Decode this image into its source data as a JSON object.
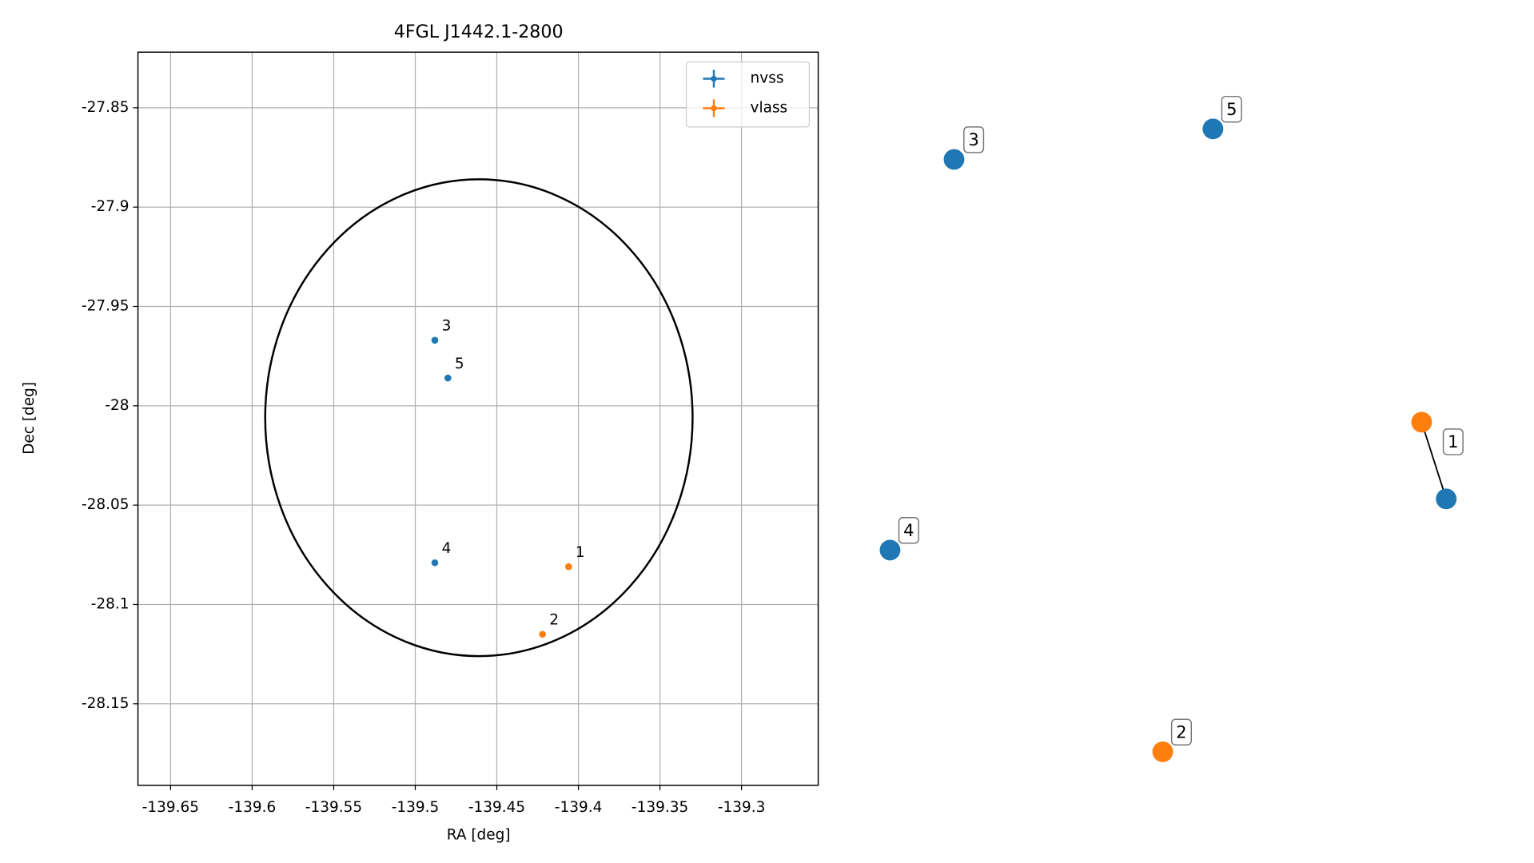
{
  "chart_data": {
    "type": "scatter",
    "title": "4FGL J1442.1-2800",
    "x_label": "RA [deg]",
    "y_label": "Dec [deg]",
    "xlim": [
      -139.67,
      -139.253
    ],
    "ylim": [
      -28.191,
      -27.822
    ],
    "xticks": [
      -139.65,
      -139.6,
      -139.55,
      -139.5,
      -139.45,
      -139.4,
      -139.35,
      -139.3
    ],
    "yticks": [
      -27.85,
      -27.9,
      -27.95,
      -28.0,
      -28.05,
      -28.1,
      -28.15
    ],
    "grid": true,
    "legend": "upper right",
    "series": [
      {
        "name": "nvss",
        "color": "#1f77b4",
        "x": [
          -139.488,
          -139.48,
          -139.488
        ],
        "values": [
          -27.967,
          -27.986,
          -28.079
        ],
        "labels": [
          "3",
          "5",
          "4"
        ]
      },
      {
        "name": "vlass",
        "color": "#ff7f0e",
        "x": [
          -139.406,
          -139.422
        ],
        "values": [
          -28.081,
          -28.115
        ],
        "labels": [
          "1",
          "2"
        ]
      }
    ],
    "ellipse": {
      "center": [
        -139.461,
        -28.006
      ],
      "semi_axes": [
        0.131,
        0.12
      ],
      "color": "#000000"
    }
  },
  "graph": {
    "groups": [
      {
        "label": "3"
      },
      {
        "label": "5"
      },
      {
        "label": "4"
      },
      {
        "label": "2"
      },
      {
        "label": "1"
      }
    ]
  }
}
